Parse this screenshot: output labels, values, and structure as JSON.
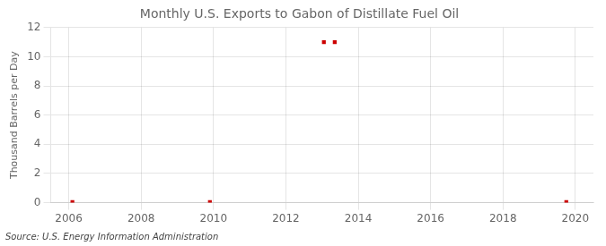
{
  "chart_data": {
    "type": "scatter",
    "title": "Monthly U.S. Exports to Gabon of Distillate Fuel Oil",
    "ylabel": "Thousand Barrels per Day",
    "annotations": [
      "Source: U.S. Energy Information Administration"
    ],
    "x": [
      2006.1,
      2009.9,
      2013.05,
      2013.35,
      2019.75
    ],
    "values": [
      0.05,
      0.05,
      11.0,
      11.0,
      0.05
    ],
    "color": "#cc0000",
    "marker": "square",
    "xlim": [
      2005.5,
      2020.5
    ],
    "xticks": [
      2006,
      2008,
      2010,
      2012,
      2014,
      2016,
      2018,
      2020
    ],
    "ylim": [
      0,
      12
    ],
    "yticks": [
      0,
      2,
      4,
      6,
      8,
      10,
      12
    ],
    "grid": true
  }
}
